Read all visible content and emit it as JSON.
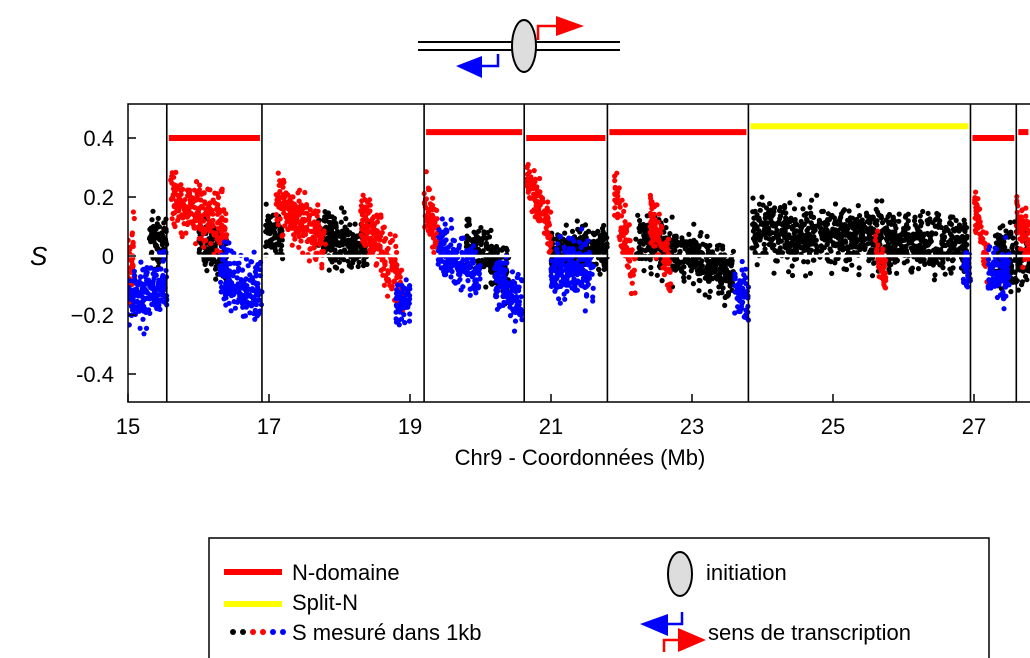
{
  "chart_data": {
    "type": "scatter",
    "title": "",
    "xlabel": "Chr9 - Coordonnées (Mb)",
    "ylabel": "S",
    "xlim": [
      15,
      27.8
    ],
    "ylim": [
      -0.5,
      0.5
    ],
    "xticks": [
      15,
      17,
      19,
      21,
      23,
      25,
      27
    ],
    "yticks": [
      0.4,
      0.2,
      0,
      -0.2,
      -0.4
    ],
    "ytick_labels": [
      "0.4",
      "0.2",
      "0",
      "−0.2",
      "-0.4"
    ],
    "zero_line": 0,
    "boundaries_mb": [
      15.55,
      16.9,
      19.2,
      20.62,
      21.8,
      23.8,
      26.95,
      27.6
    ],
    "domains": [
      {
        "type": "N-domaine",
        "x": [
          15.55,
          16.9
        ],
        "y": 0.4
      },
      {
        "type": "N-domaine",
        "x": [
          19.2,
          20.62
        ],
        "y": 0.42
      },
      {
        "type": "N-domaine",
        "x": [
          20.62,
          21.8
        ],
        "y": 0.4
      },
      {
        "type": "N-domaine",
        "x": [
          21.8,
          23.8
        ],
        "y": 0.42
      },
      {
        "type": "Split-N",
        "x": [
          23.8,
          26.95
        ],
        "y": 0.44
      },
      {
        "type": "N-domaine",
        "x": [
          26.95,
          27.6
        ],
        "y": 0.4
      },
      {
        "type": "N-domaine",
        "x": [
          27.6,
          27.8
        ],
        "y": 0.42
      }
    ],
    "series": [
      {
        "color": "#ff0000",
        "description": "S > 0 skew blocks",
        "clusters": [
          {
            "x": [
              15.0,
              15.1
            ],
            "center": 0.0,
            "slope": 0.1,
            "spread": 0.1
          },
          {
            "x": [
              15.6,
              16.4
            ],
            "center": 0.14,
            "slope": -0.1,
            "spread": 0.08
          },
          {
            "x": [
              17.1,
              17.8
            ],
            "center": 0.12,
            "slope": -0.15,
            "spread": 0.08
          },
          {
            "x": [
              18.3,
              18.9
            ],
            "center": 0.02,
            "slope": -0.22,
            "spread": 0.08
          },
          {
            "x": [
              19.2,
              19.4
            ],
            "center": 0.12,
            "slope": -0.1,
            "spread": 0.08
          },
          {
            "x": [
              20.65,
              21.0
            ],
            "center": 0.18,
            "slope": -0.2,
            "spread": 0.06
          },
          {
            "x": [
              21.9,
              22.2
            ],
            "center": 0.05,
            "slope": -0.3,
            "spread": 0.08
          },
          {
            "x": [
              22.4,
              22.7
            ],
            "center": 0.05,
            "slope": -0.2,
            "spread": 0.07
          },
          {
            "x": [
              25.6,
              25.75
            ],
            "center": -0.02,
            "slope": -0.1,
            "spread": 0.05
          },
          {
            "x": [
              27.0,
              27.2
            ],
            "center": 0.08,
            "slope": -0.2,
            "spread": 0.07
          },
          {
            "x": [
              27.6,
              27.8
            ],
            "center": 0.08,
            "slope": -0.1,
            "spread": 0.07
          }
        ]
      },
      {
        "color": "#0000ff",
        "description": "S < 0 skew blocks",
        "clusters": [
          {
            "x": [
              15.0,
              15.55
            ],
            "center": -0.12,
            "slope": 0.05,
            "spread": 0.08
          },
          {
            "x": [
              16.3,
              16.9
            ],
            "center": -0.1,
            "slope": -0.05,
            "spread": 0.08
          },
          {
            "x": [
              18.8,
              19.0
            ],
            "center": -0.15,
            "slope": 0.0,
            "spread": 0.06
          },
          {
            "x": [
              19.4,
              20.0
            ],
            "center": -0.02,
            "slope": -0.1,
            "spread": 0.07
          },
          {
            "x": [
              20.2,
              20.6
            ],
            "center": -0.12,
            "slope": -0.1,
            "spread": 0.08
          },
          {
            "x": [
              21.0,
              21.6
            ],
            "center": -0.05,
            "slope": 0.0,
            "spread": 0.08
          },
          {
            "x": [
              23.6,
              23.8
            ],
            "center": -0.12,
            "slope": -0.05,
            "spread": 0.07
          },
          {
            "x": [
              26.85,
              26.95
            ],
            "center": -0.05,
            "slope": 0.0,
            "spread": 0.06
          },
          {
            "x": [
              27.2,
              27.5
            ],
            "center": -0.06,
            "slope": 0.0,
            "spread": 0.07
          }
        ]
      },
      {
        "color": "#000000",
        "description": "S measured, unclassified",
        "clusters": [
          {
            "x": [
              15.3,
              15.55
            ],
            "center": 0.05,
            "slope": 0.0,
            "spread": 0.08
          },
          {
            "x": [
              16.0,
              16.4
            ],
            "center": 0.02,
            "slope": -0.05,
            "spread": 0.07
          },
          {
            "x": [
              16.95,
              17.2
            ],
            "center": 0.08,
            "slope": 0.0,
            "spread": 0.07
          },
          {
            "x": [
              17.7,
              18.4
            ],
            "center": 0.05,
            "slope": -0.05,
            "spread": 0.07
          },
          {
            "x": [
              19.8,
              20.4
            ],
            "center": 0.0,
            "slope": -0.12,
            "spread": 0.07
          },
          {
            "x": [
              21.0,
              21.8
            ],
            "center": 0.02,
            "slope": 0.0,
            "spread": 0.06
          },
          {
            "x": [
              22.2,
              23.6
            ],
            "center": 0.0,
            "slope": -0.12,
            "spread": 0.07
          },
          {
            "x": [
              23.85,
              26.9
            ],
            "center": 0.06,
            "slope": -0.05,
            "spread": 0.08
          },
          {
            "x": [
              27.3,
              27.8
            ],
            "center": 0.0,
            "slope": 0.0,
            "spread": 0.08
          }
        ]
      }
    ]
  },
  "legend": {
    "items": [
      {
        "label": "N-domaine",
        "color": "#ff0000"
      },
      {
        "label": "Split-N",
        "color": "#ffff00"
      },
      {
        "label": "S mesuré dans 1kb",
        "colors": [
          "#000000",
          "#ff0000",
          "#0000ff"
        ]
      },
      {
        "label": "initiation"
      },
      {
        "label": "sens de transcription"
      }
    ]
  }
}
